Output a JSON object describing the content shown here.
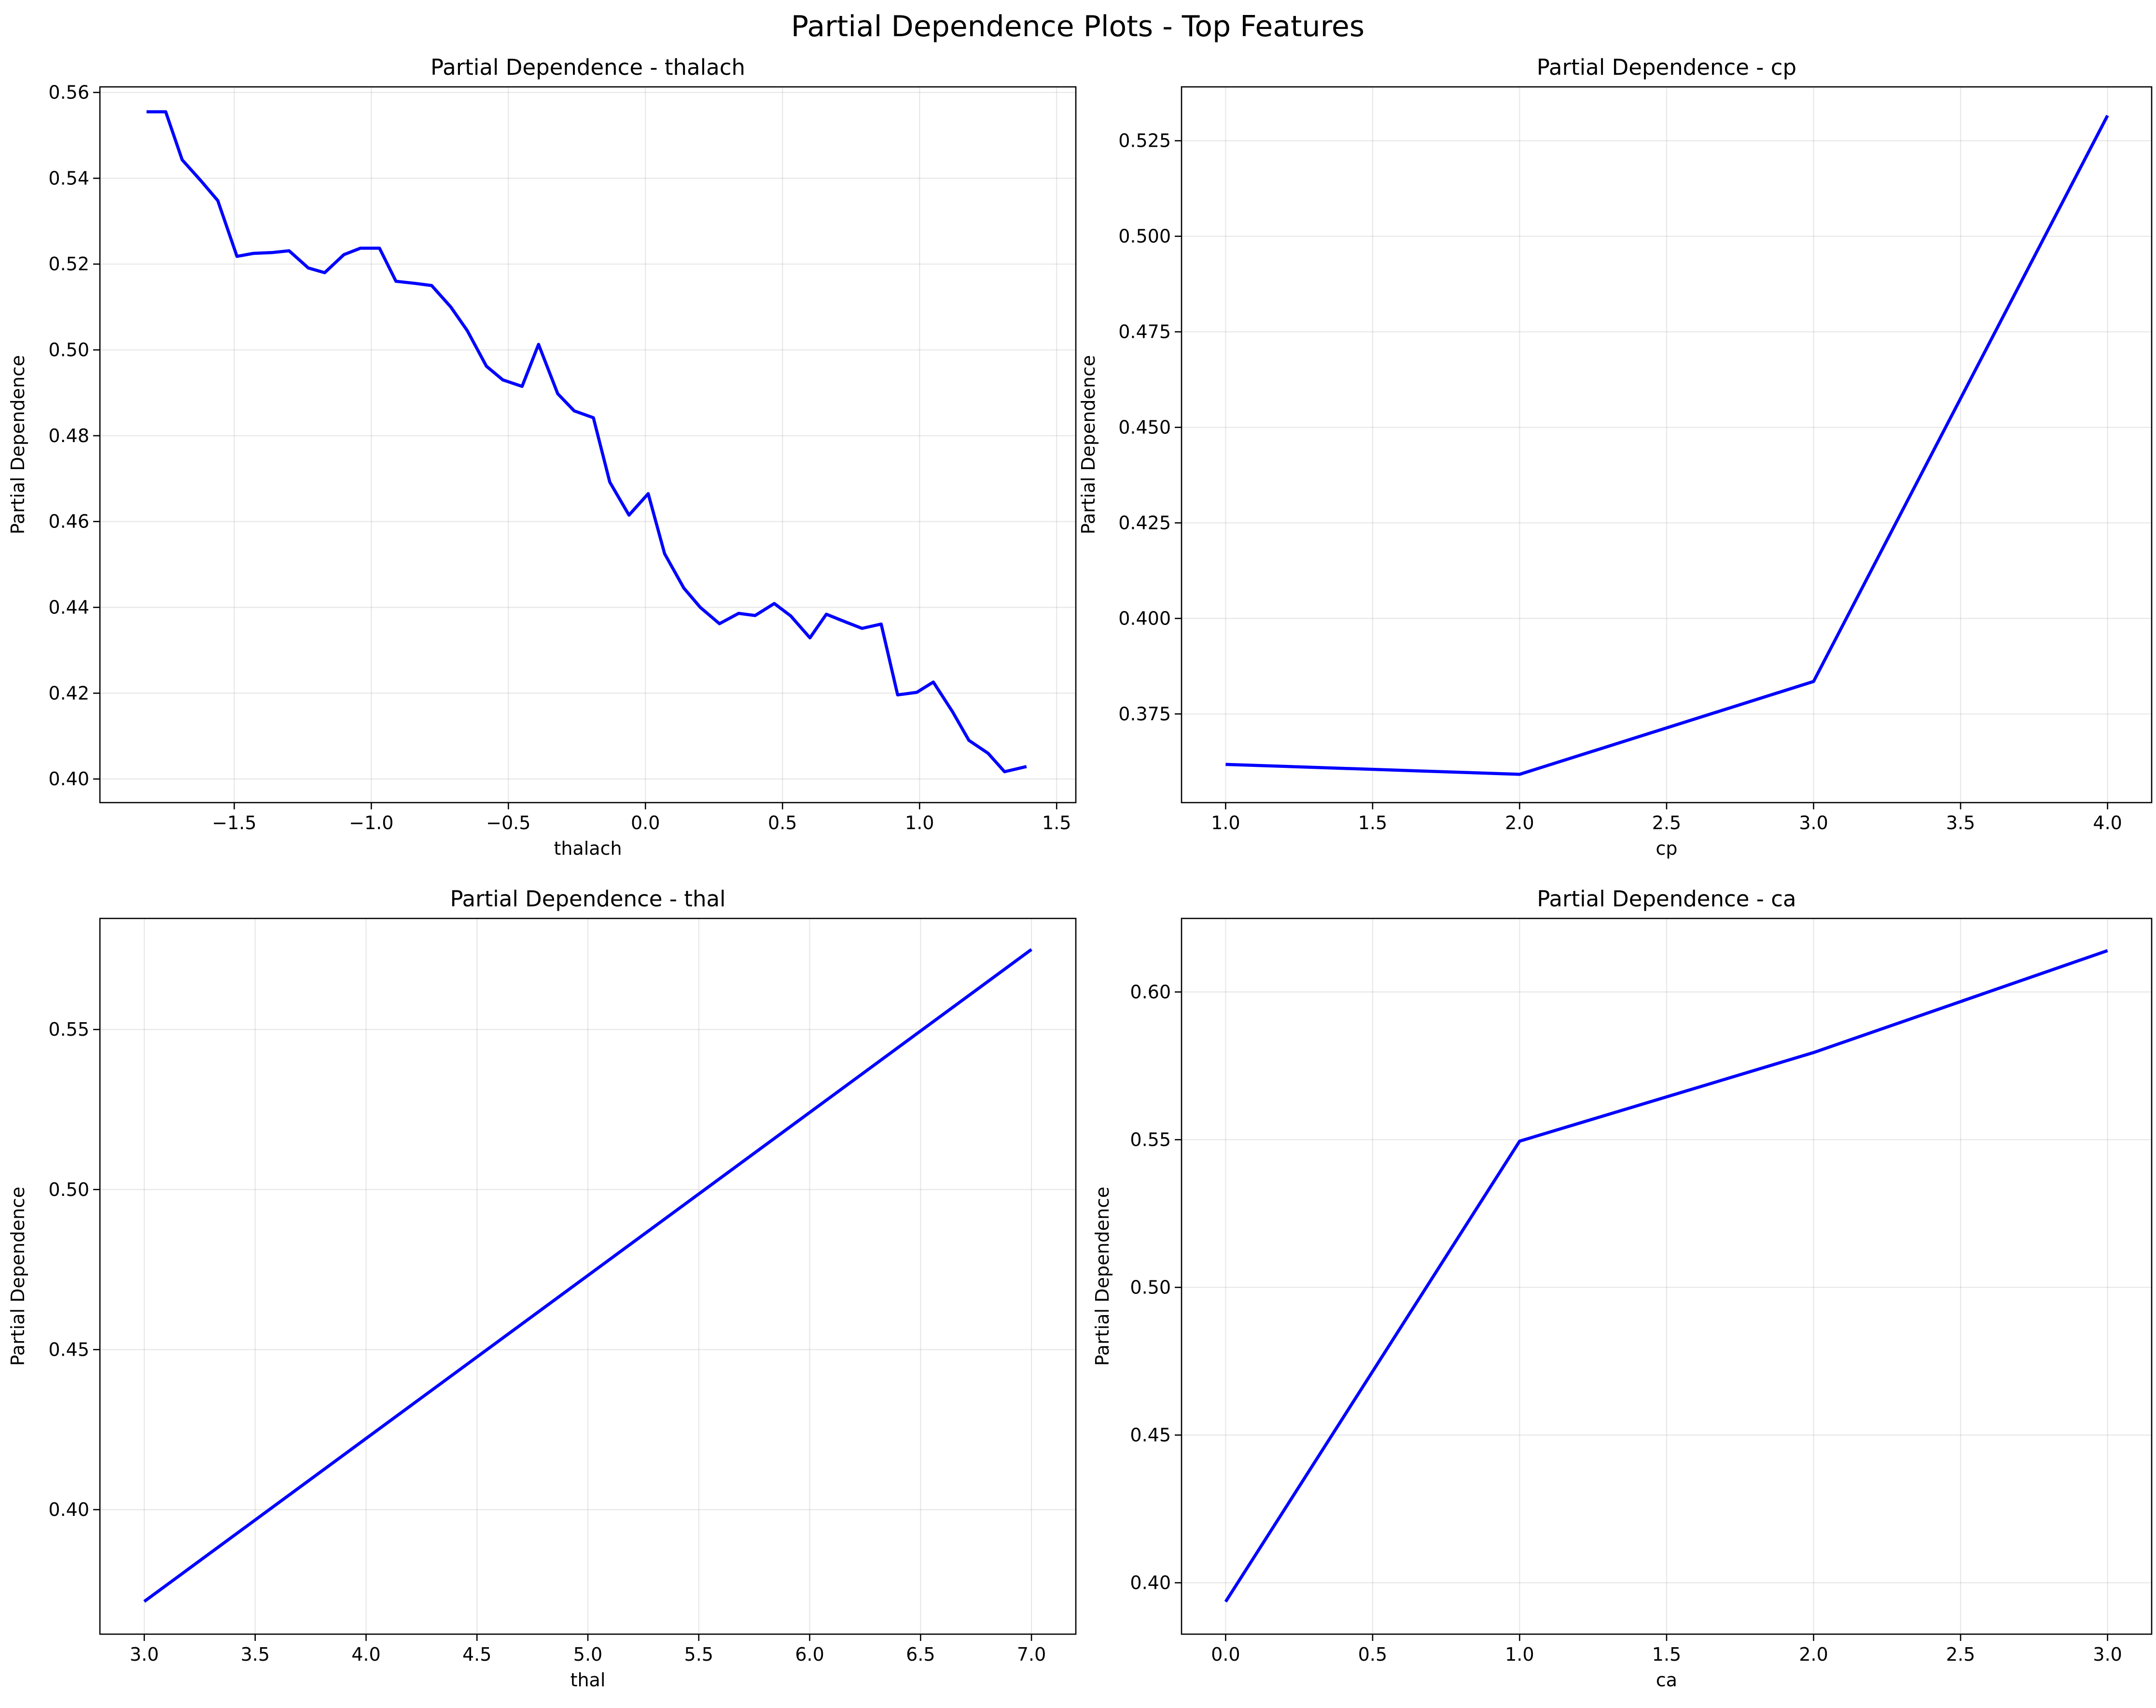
{
  "figure": {
    "title": "Partial Dependence Plots - Top Features"
  },
  "chart_data": [
    {
      "type": "line",
      "title": "Partial Dependence - thalach",
      "xlabel": "thalach",
      "ylabel": "Partial Dependence",
      "xlim": [
        -1.99,
        1.57
      ],
      "ylim": [
        0.3945,
        0.5613
      ],
      "xticks": [
        -1.5,
        -1.0,
        -0.5,
        0.0,
        0.5,
        1.0,
        1.5
      ],
      "xtick_labels": [
        "−1.5",
        "−1.0",
        "−0.5",
        "0.0",
        "0.5",
        "1.0",
        "1.5"
      ],
      "yticks": [
        0.4,
        0.42,
        0.44,
        0.46,
        0.48,
        0.5,
        0.52,
        0.54,
        0.56
      ],
      "ytick_labels": [
        "0.40",
        "0.42",
        "0.44",
        "0.46",
        "0.48",
        "0.50",
        "0.52",
        "0.54",
        "0.56"
      ],
      "grid": true,
      "series": [
        {
          "color": "#0000ff",
          "x": [
            -1.82,
            -1.75,
            -1.69,
            -1.62,
            -1.56,
            -1.49,
            -1.43,
            -1.36,
            -1.3,
            -1.23,
            -1.17,
            -1.1,
            -1.04,
            -0.97,
            -0.91,
            -0.84,
            -0.78,
            -0.71,
            -0.65,
            -0.58,
            -0.52,
            -0.45,
            -0.39,
            -0.32,
            -0.26,
            -0.19,
            -0.13,
            -0.06,
            0.01,
            0.07,
            0.14,
            0.2,
            0.27,
            0.34,
            0.4,
            0.47,
            0.53,
            0.6,
            0.66,
            0.73,
            0.79,
            0.86,
            0.92,
            0.99,
            1.05,
            1.12,
            1.18,
            1.25,
            1.31,
            1.39
          ],
          "y": [
            0.5555,
            0.5555,
            0.5443,
            0.5393,
            0.5348,
            0.5218,
            0.5225,
            0.5227,
            0.5231,
            0.5191,
            0.518,
            0.5222,
            0.5237,
            0.5237,
            0.516,
            0.5155,
            0.515,
            0.51,
            0.5045,
            0.4962,
            0.493,
            0.4915,
            0.5013,
            0.4898,
            0.4858,
            0.4842,
            0.4692,
            0.4615,
            0.4665,
            0.4525,
            0.4445,
            0.44,
            0.4362,
            0.4386,
            0.4381,
            0.4409,
            0.438,
            0.4329,
            0.4384,
            0.4366,
            0.4351,
            0.4361,
            0.4196,
            0.4202,
            0.4226,
            0.4157,
            0.409,
            0.406,
            0.4017,
            0.4029
          ]
        }
      ]
    },
    {
      "type": "line",
      "title": "Partial Dependence - cp",
      "xlabel": "cp",
      "ylabel": "Partial Dependence",
      "xlim": [
        0.85,
        4.15
      ],
      "ylim": [
        0.3518,
        0.5391
      ],
      "xticks": [
        1.0,
        1.5,
        2.0,
        2.5,
        3.0,
        3.5,
        4.0
      ],
      "xtick_labels": [
        "1.0",
        "1.5",
        "2.0",
        "2.5",
        "3.0",
        "3.5",
        "4.0"
      ],
      "yticks": [
        0.375,
        0.4,
        0.425,
        0.45,
        0.475,
        0.5,
        0.525
      ],
      "ytick_labels": [
        "0.375",
        "0.400",
        "0.425",
        "0.450",
        "0.475",
        "0.500",
        "0.525"
      ],
      "grid": true,
      "series": [
        {
          "color": "#0000ff",
          "x": [
            1.0,
            2.0,
            3.0,
            4.0
          ],
          "y": [
            0.3618,
            0.3592,
            0.3835,
            0.5316
          ]
        }
      ]
    },
    {
      "type": "line",
      "title": "Partial Dependence - thal",
      "xlabel": "thal",
      "ylabel": "Partial Dependence",
      "xlim": [
        2.8,
        7.2
      ],
      "ylim": [
        0.3611,
        0.5847
      ],
      "xticks": [
        3.0,
        3.5,
        4.0,
        4.5,
        5.0,
        5.5,
        6.0,
        6.5,
        7.0
      ],
      "xtick_labels": [
        "3.0",
        "3.5",
        "4.0",
        "4.5",
        "5.0",
        "5.5",
        "6.0",
        "6.5",
        "7.0"
      ],
      "yticks": [
        0.4,
        0.45,
        0.5,
        0.55
      ],
      "ytick_labels": [
        "0.40",
        "0.45",
        "0.50",
        "0.55"
      ],
      "grid": true,
      "series": [
        {
          "color": "#0000ff",
          "x": [
            3.0,
            7.0
          ],
          "y": [
            0.3713,
            0.575
          ]
        }
      ]
    },
    {
      "type": "line",
      "title": "Partial Dependence - ca",
      "xlabel": "ca",
      "ylabel": "Partial Dependence",
      "xlim": [
        -0.15,
        3.15
      ],
      "ylim": [
        0.3826,
        0.6249
      ],
      "xticks": [
        0.0,
        0.5,
        1.0,
        1.5,
        2.0,
        2.5,
        3.0
      ],
      "xtick_labels": [
        "0.0",
        "0.5",
        "1.0",
        "1.5",
        "2.0",
        "2.5",
        "3.0"
      ],
      "yticks": [
        0.4,
        0.45,
        0.5,
        0.55,
        0.6
      ],
      "ytick_labels": [
        "0.40",
        "0.45",
        "0.50",
        "0.55",
        "0.60"
      ],
      "grid": true,
      "series": [
        {
          "color": "#0000ff",
          "x": [
            0.0,
            1.0,
            2.0,
            3.0
          ],
          "y": [
            0.3936,
            0.5495,
            0.5795,
            0.614
          ]
        }
      ]
    }
  ]
}
